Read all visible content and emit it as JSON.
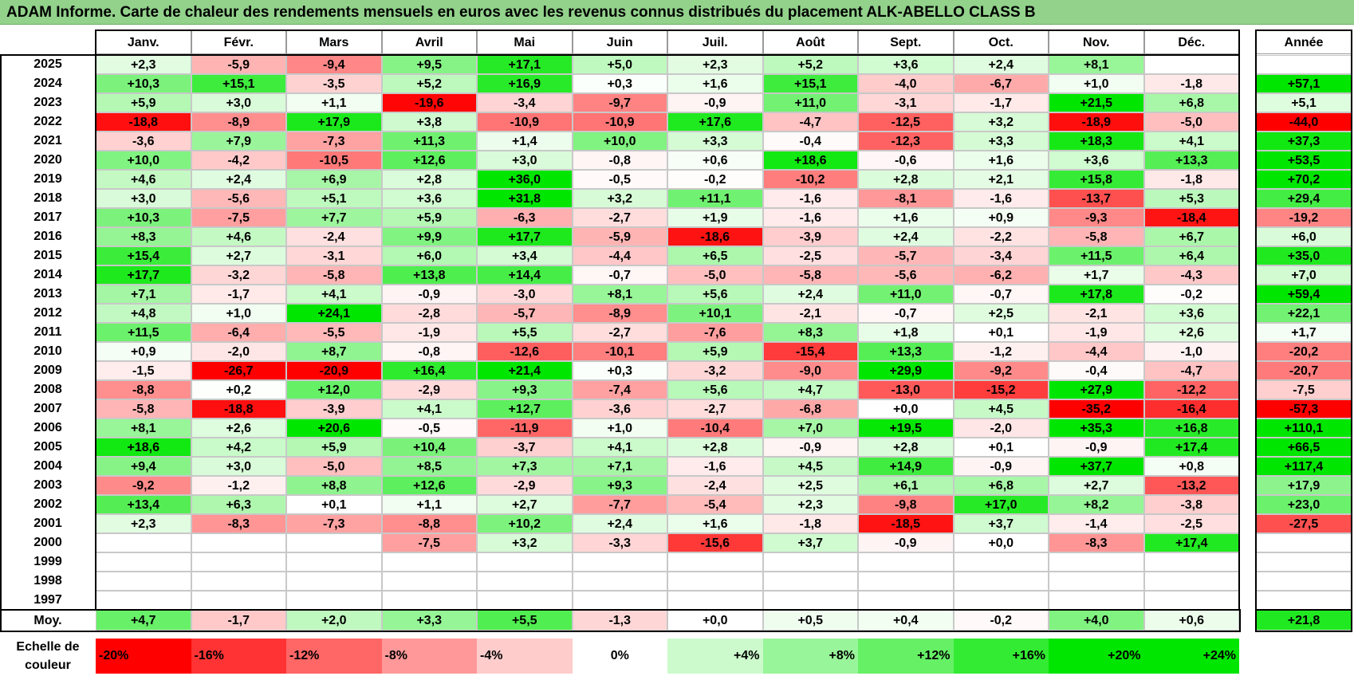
{
  "title": "ADAM Informe. Carte de chaleur des rendements mensuels en euros avec les revenus connus distribués du placement ALK-ABELLO CLASS B",
  "chart_data": {
    "type": "heatmap",
    "title": "ADAM Informe. Carte de chaleur des rendements mensuels en euros avec les revenus connus distribués du placement ALK-ABELLO CLASS B",
    "months": [
      "Janv.",
      "Févr.",
      "Mars",
      "Avril",
      "Mai",
      "Juin",
      "Juil.",
      "Août",
      "Sept.",
      "Oct.",
      "Nov.",
      "Déc."
    ],
    "year_header": "Année",
    "rows": [
      {
        "year": "2025",
        "values": [
          "+2,3",
          "-5,9",
          "-9,4",
          "+9,5",
          "+17,1",
          "+5,0",
          "+2,3",
          "+5,2",
          "+3,6",
          "+2,4",
          "+8,1",
          ""
        ],
        "annual": ""
      },
      {
        "year": "2024",
        "values": [
          "+10,3",
          "+15,1",
          "-3,5",
          "+5,2",
          "+16,9",
          "+0,3",
          "+1,6",
          "+15,1",
          "-4,0",
          "-6,7",
          "+1,0",
          "-1,8"
        ],
        "annual": "+57,1"
      },
      {
        "year": "2023",
        "values": [
          "+5,9",
          "+3,0",
          "+1,1",
          "-19,6",
          "-3,4",
          "-9,7",
          "-0,9",
          "+11,0",
          "-3,1",
          "-1,7",
          "+21,5",
          "+6,8"
        ],
        "annual": "+5,1"
      },
      {
        "year": "2022",
        "values": [
          "-18,8",
          "-8,9",
          "+17,9",
          "+3,8",
          "-10,9",
          "-10,9",
          "+17,6",
          "-4,7",
          "-12,5",
          "+3,2",
          "-18,9",
          "-5,0"
        ],
        "annual": "-44,0"
      },
      {
        "year": "2021",
        "values": [
          "-3,6",
          "+7,9",
          "-7,3",
          "+11,3",
          "+1,4",
          "+10,0",
          "+3,3",
          "-0,4",
          "-12,3",
          "+3,3",
          "+18,3",
          "+4,1"
        ],
        "annual": "+37,3"
      },
      {
        "year": "2020",
        "values": [
          "+10,0",
          "-4,2",
          "-10,5",
          "+12,6",
          "+3,0",
          "-0,8",
          "+0,6",
          "+18,6",
          "-0,6",
          "+1,6",
          "+3,6",
          "+13,3"
        ],
        "annual": "+53,5"
      },
      {
        "year": "2019",
        "values": [
          "+4,6",
          "+2,4",
          "+6,9",
          "+2,8",
          "+36,0",
          "-0,5",
          "-0,2",
          "-10,2",
          "+2,8",
          "+2,1",
          "+15,8",
          "-1,8"
        ],
        "annual": "+70,2"
      },
      {
        "year": "2018",
        "values": [
          "+3,0",
          "-5,6",
          "+5,1",
          "+3,6",
          "+31,8",
          "+3,2",
          "+11,1",
          "-1,6",
          "-8,1",
          "-1,6",
          "-13,7",
          "+5,3"
        ],
        "annual": "+29,4"
      },
      {
        "year": "2017",
        "values": [
          "+10,3",
          "-7,5",
          "+7,7",
          "+5,9",
          "-6,3",
          "-2,7",
          "+1,9",
          "-1,6",
          "+1,6",
          "+0,9",
          "-9,3",
          "-18,4"
        ],
        "annual": "-19,2"
      },
      {
        "year": "2016",
        "values": [
          "+8,3",
          "+4,6",
          "-2,4",
          "+9,9",
          "+17,7",
          "-5,9",
          "-18,6",
          "-3,9",
          "+2,4",
          "-2,2",
          "-5,8",
          "+6,7"
        ],
        "annual": "+6,0"
      },
      {
        "year": "2015",
        "values": [
          "+15,4",
          "+2,7",
          "-3,1",
          "+6,0",
          "+3,4",
          "-4,4",
          "+6,5",
          "-2,5",
          "-5,7",
          "-3,4",
          "+11,5",
          "+6,4"
        ],
        "annual": "+35,0"
      },
      {
        "year": "2014",
        "values": [
          "+17,7",
          "-3,2",
          "-5,8",
          "+13,8",
          "+14,4",
          "-0,7",
          "-5,0",
          "-5,8",
          "-5,6",
          "-6,2",
          "+1,7",
          "-4,3"
        ],
        "annual": "+7,0"
      },
      {
        "year": "2013",
        "values": [
          "+7,1",
          "-1,7",
          "+4,1",
          "-0,9",
          "-3,0",
          "+8,1",
          "+5,6",
          "+2,4",
          "+11,0",
          "-0,7",
          "+17,8",
          "-0,2"
        ],
        "annual": "+59,4"
      },
      {
        "year": "2012",
        "values": [
          "+4,8",
          "+1,0",
          "+24,1",
          "-2,8",
          "-5,7",
          "-8,9",
          "+10,1",
          "-2,1",
          "-0,7",
          "+2,5",
          "-2,1",
          "+3,6"
        ],
        "annual": "+22,1"
      },
      {
        "year": "2011",
        "values": [
          "+11,5",
          "-6,4",
          "-5,5",
          "-1,9",
          "+5,5",
          "-2,7",
          "-7,6",
          "+8,3",
          "+1,8",
          "+0,1",
          "-1,9",
          "+2,6"
        ],
        "annual": "+1,7"
      },
      {
        "year": "2010",
        "values": [
          "+0,9",
          "-2,0",
          "+8,7",
          "-0,8",
          "-12,6",
          "-10,1",
          "+5,9",
          "-15,4",
          "+13,3",
          "-1,2",
          "-4,4",
          "-1,0"
        ],
        "annual": "-20,2"
      },
      {
        "year": "2009",
        "values": [
          "-1,5",
          "-26,7",
          "-20,9",
          "+16,4",
          "+21,4",
          "+0,3",
          "-3,2",
          "-9,0",
          "+29,9",
          "-9,2",
          "-0,4",
          "-4,7"
        ],
        "annual": "-20,7"
      },
      {
        "year": "2008",
        "values": [
          "-8,8",
          "+0,2",
          "+12,0",
          "-2,9",
          "+9,3",
          "-7,4",
          "+5,6",
          "+4,7",
          "-13,0",
          "-15,2",
          "+27,9",
          "-12,2"
        ],
        "annual": "-7,5"
      },
      {
        "year": "2007",
        "values": [
          "-5,8",
          "-18,8",
          "-3,9",
          "+4,1",
          "+12,7",
          "-3,6",
          "-2,7",
          "-6,8",
          "+0,0",
          "+4,5",
          "-35,2",
          "-16,4"
        ],
        "annual": "-57,3"
      },
      {
        "year": "2006",
        "values": [
          "+8,1",
          "+2,6",
          "+20,6",
          "-0,5",
          "-11,9",
          "+1,0",
          "-10,4",
          "+7,0",
          "+19,5",
          "-2,0",
          "+35,3",
          "+16,8"
        ],
        "annual": "+110,1"
      },
      {
        "year": "2005",
        "values": [
          "+18,6",
          "+4,2",
          "+5,9",
          "+10,4",
          "-3,7",
          "+4,1",
          "+2,8",
          "-0,9",
          "+2,8",
          "+0,1",
          "-0,9",
          "+17,4"
        ],
        "annual": "+66,5"
      },
      {
        "year": "2004",
        "values": [
          "+9,4",
          "+3,0",
          "-5,0",
          "+8,5",
          "+7,3",
          "+7,1",
          "-1,6",
          "+4,5",
          "+14,9",
          "-0,9",
          "+37,7",
          "+0,8"
        ],
        "annual": "+117,4"
      },
      {
        "year": "2003",
        "values": [
          "-9,2",
          "-1,2",
          "+8,8",
          "+12,6",
          "-2,9",
          "+9,3",
          "-2,4",
          "+2,5",
          "+6,1",
          "+6,8",
          "+2,7",
          "-13,2"
        ],
        "annual": "+17,9"
      },
      {
        "year": "2002",
        "values": [
          "+13,4",
          "+6,3",
          "+0,1",
          "+1,1",
          "+2,7",
          "-7,7",
          "-5,4",
          "+2,3",
          "-9,8",
          "+17,0",
          "+8,2",
          "-3,8"
        ],
        "annual": "+23,0"
      },
      {
        "year": "2001",
        "values": [
          "+2,3",
          "-8,3",
          "-7,3",
          "-8,8",
          "+10,2",
          "+2,4",
          "+1,6",
          "-1,8",
          "-18,5",
          "+3,7",
          "-1,4",
          "-2,5"
        ],
        "annual": "-27,5"
      },
      {
        "year": "2000",
        "values": [
          "",
          "",
          "",
          "-7,5",
          "+3,2",
          "-3,3",
          "-15,6",
          "+3,7",
          "-0,9",
          "+0,0",
          "-8,3",
          "+17,4"
        ],
        "annual": ""
      },
      {
        "year": "1999",
        "values": [
          "",
          "",
          "",
          "",
          "",
          "",
          "",
          "",
          "",
          "",
          "",
          ""
        ],
        "annual": ""
      },
      {
        "year": "1998",
        "values": [
          "",
          "",
          "",
          "",
          "",
          "",
          "",
          "",
          "",
          "",
          "",
          ""
        ],
        "annual": ""
      },
      {
        "year": "1997",
        "values": [
          "",
          "",
          "",
          "",
          "",
          "",
          "",
          "",
          "",
          "",
          "",
          ""
        ],
        "annual": ""
      }
    ],
    "average": {
      "label": "Moy.",
      "values": [
        "+4,7",
        "-1,7",
        "+2,0",
        "+3,3",
        "+5,5",
        "-1,3",
        "+0,0",
        "+0,5",
        "+0,4",
        "-0,2",
        "+4,0",
        "+0,6"
      ],
      "annual": "+21,8"
    },
    "color_scale": {
      "label_line1": "Echelle de",
      "label_line2": "couleur",
      "steps": [
        "-20%",
        "-16%",
        "-12%",
        "-8%",
        "-4%",
        "0%",
        "+4%",
        "+8%",
        "+12%",
        "+16%",
        "+20%",
        "+24%"
      ],
      "step_values": [
        -20,
        -16,
        -12,
        -8,
        -4,
        0,
        4,
        8,
        12,
        16,
        20,
        24
      ]
    },
    "colors": {
      "negative": "#ff0000",
      "neutral": "#ffffff",
      "positive": "#00e000"
    }
  }
}
